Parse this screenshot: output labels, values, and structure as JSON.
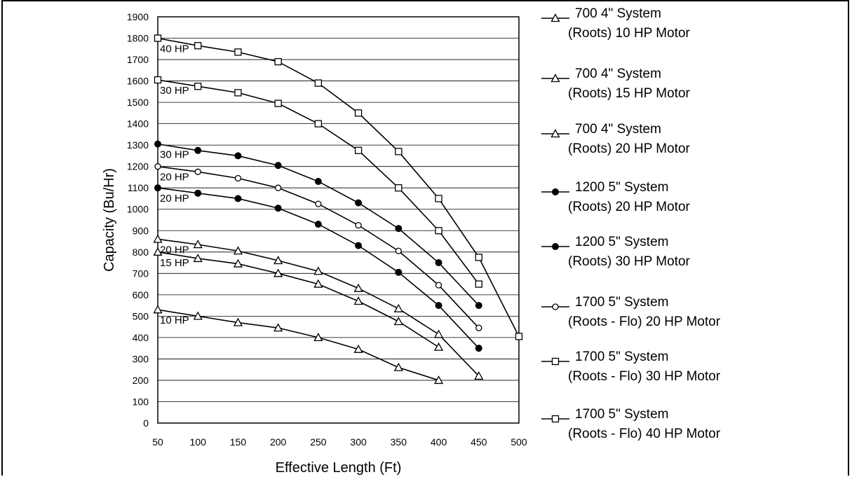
{
  "chart_data": {
    "type": "line",
    "xlabel": "Effective Length (Ft)",
    "ylabel": "Capacity (Bu/Hr)",
    "xlim": [
      50,
      500
    ],
    "ylim": [
      0,
      1900
    ],
    "x_ticks": [
      50,
      100,
      150,
      200,
      250,
      300,
      350,
      400,
      450,
      500
    ],
    "y_ticks": [
      0,
      100,
      200,
      300,
      400,
      500,
      600,
      700,
      800,
      900,
      1000,
      1100,
      1200,
      1300,
      1400,
      1500,
      1600,
      1700,
      1800,
      1900
    ],
    "grid": "horizontal",
    "legend_position": "right",
    "series": [
      {
        "name_line1": "700 4\" System",
        "name_line2": "(Roots) 10 HP Motor",
        "marker": "triangle",
        "curve_label": "10 HP",
        "x": [
          50,
          100,
          150,
          200,
          250,
          300,
          350,
          400
        ],
        "y": [
          530,
          500,
          470,
          445,
          400,
          345,
          260,
          200
        ]
      },
      {
        "name_line1": "700 4\" System",
        "name_line2": "(Roots) 15 HP Motor",
        "marker": "triangle",
        "curve_label": "15 HP",
        "x": [
          50,
          100,
          150,
          200,
          250,
          300,
          350,
          400
        ],
        "y": [
          800,
          770,
          745,
          700,
          650,
          570,
          475,
          355
        ]
      },
      {
        "name_line1": "700 4\" System",
        "name_line2": "(Roots) 20 HP Motor",
        "marker": "triangle",
        "curve_label": "20 HP",
        "x": [
          50,
          100,
          150,
          200,
          250,
          300,
          350,
          400,
          450
        ],
        "y": [
          860,
          835,
          805,
          760,
          710,
          630,
          535,
          415,
          220
        ]
      },
      {
        "name_line1": "1200 5\" System",
        "name_line2": "(Roots) 20 HP Motor",
        "marker": "filled-circle",
        "curve_label": "20 HP",
        "x": [
          50,
          100,
          150,
          200,
          250,
          300,
          350,
          400,
          450
        ],
        "y": [
          1100,
          1075,
          1050,
          1005,
          930,
          830,
          705,
          550,
          350
        ]
      },
      {
        "name_line1": "1200 5\" System",
        "name_line2": "(Roots) 30 HP Motor",
        "marker": "filled-circle",
        "curve_label": "30 HP",
        "x": [
          50,
          100,
          150,
          200,
          250,
          300,
          350,
          400,
          450
        ],
        "y": [
          1305,
          1275,
          1250,
          1205,
          1130,
          1030,
          910,
          750,
          550
        ]
      },
      {
        "name_line1": "1700 5\" System",
        "name_line2": "(Roots - Flo) 20 HP Motor",
        "marker": "open-circle",
        "curve_label": "20 HP",
        "x": [
          50,
          100,
          150,
          200,
          250,
          300,
          350,
          400,
          450
        ],
        "y": [
          1200,
          1175,
          1145,
          1100,
          1025,
          925,
          805,
          645,
          445
        ]
      },
      {
        "name_line1": "1700 5\" System",
        "name_line2": "(Roots - Flo) 30 HP Motor",
        "marker": "open-square",
        "curve_label": "30 HP",
        "x": [
          50,
          100,
          150,
          200,
          250,
          300,
          350,
          400,
          450
        ],
        "y": [
          1605,
          1575,
          1545,
          1495,
          1400,
          1275,
          1100,
          900,
          650
        ]
      },
      {
        "name_line1": "1700 5\" System",
        "name_line2": "(Roots - Flo) 40 HP Motor",
        "marker": "open-square",
        "curve_label": "40 HP",
        "x": [
          50,
          100,
          150,
          200,
          250,
          300,
          350,
          400,
          450,
          500
        ],
        "y": [
          1800,
          1765,
          1735,
          1690,
          1590,
          1450,
          1270,
          1050,
          775,
          405
        ]
      }
    ]
  }
}
